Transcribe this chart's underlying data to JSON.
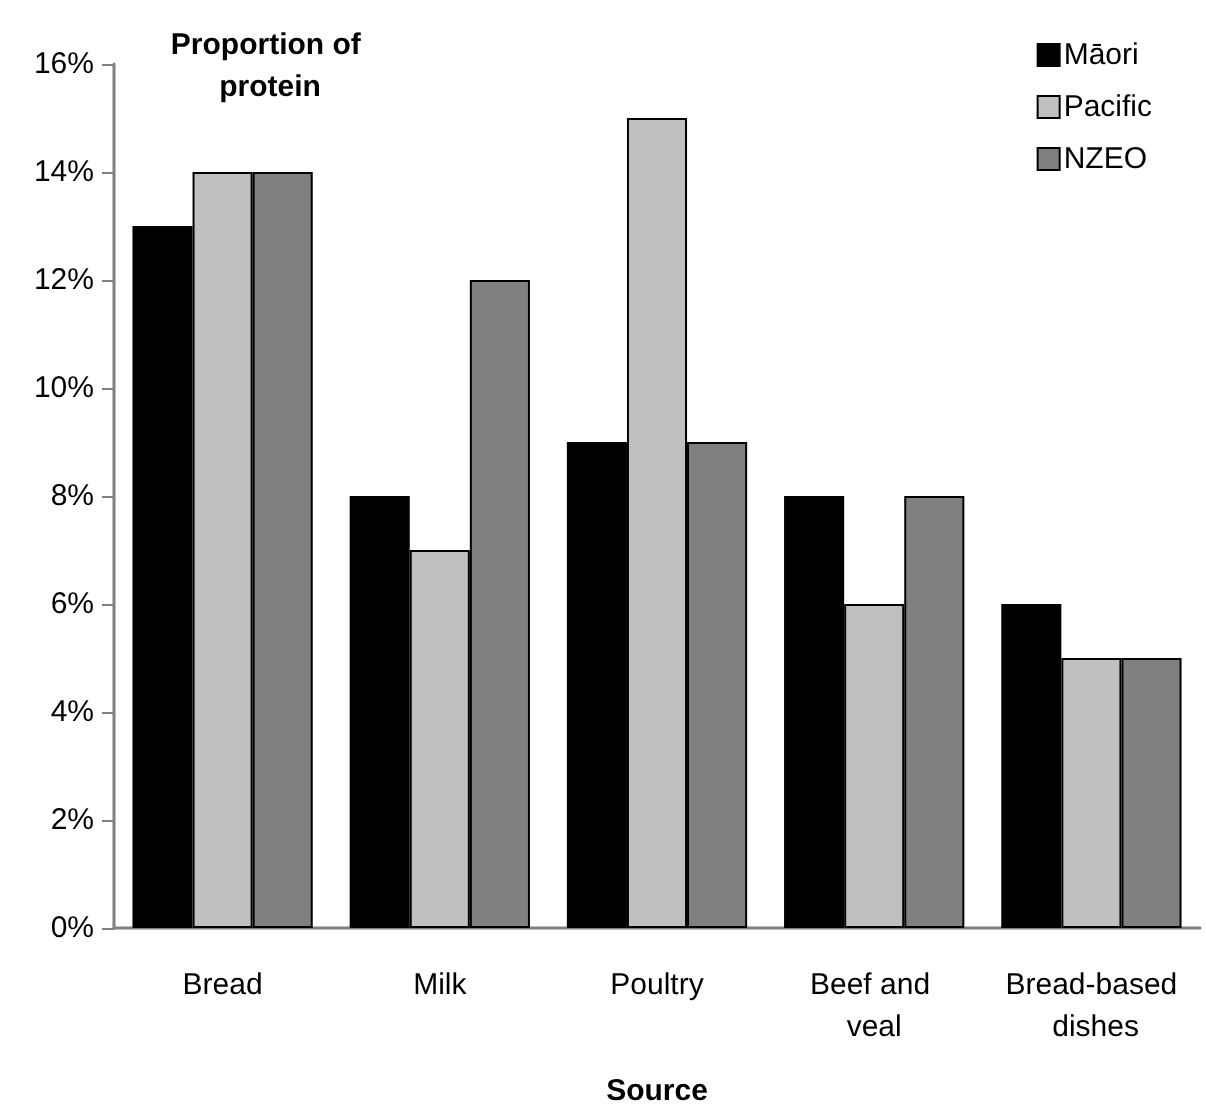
{
  "chart_data": {
    "type": "bar",
    "ylabel": "Proportion of protein",
    "xlabel": "Source",
    "categories": [
      "Bread",
      "Milk",
      "Poultry",
      "Beef and veal",
      "Bread-based dishes"
    ],
    "series": [
      {
        "name": "Māori",
        "color": "#000000",
        "values": [
          13,
          8,
          9,
          8,
          6
        ]
      },
      {
        "name": "Pacific",
        "color": "#c0c0c0",
        "values": [
          14,
          7,
          15,
          6,
          5
        ]
      },
      {
        "name": "NZEO",
        "color": "#808080",
        "values": [
          14,
          12,
          9,
          8,
          5
        ]
      }
    ],
    "ylim": [
      0,
      16
    ],
    "yticks": [
      {
        "value": 0,
        "label": "0%"
      },
      {
        "value": 2,
        "label": "2%"
      },
      {
        "value": 4,
        "label": "4%"
      },
      {
        "value": 6,
        "label": "6%"
      },
      {
        "value": 8,
        "label": "8%"
      },
      {
        "value": 10,
        "label": "10%"
      },
      {
        "value": 12,
        "label": "12%"
      },
      {
        "value": 14,
        "label": "14%"
      },
      {
        "value": 16,
        "label": "16%"
      }
    ],
    "legend": "top right"
  }
}
